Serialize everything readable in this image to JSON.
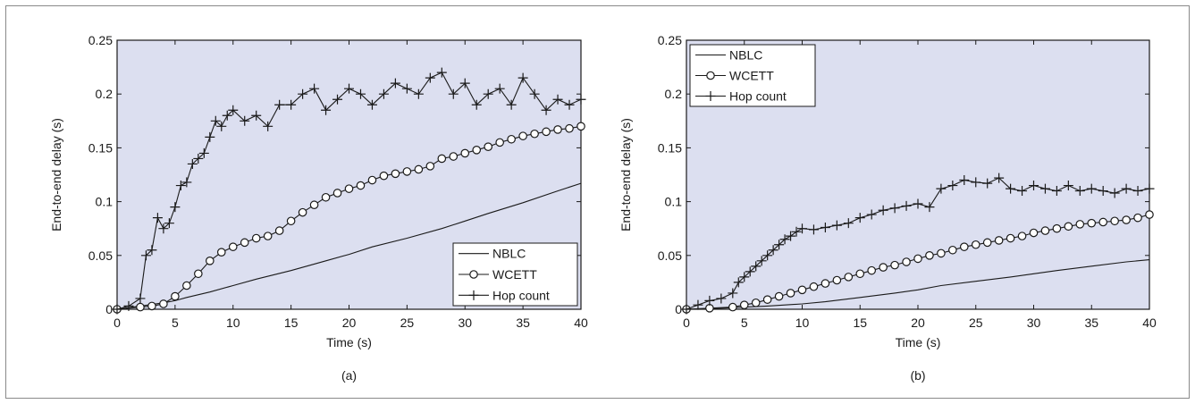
{
  "figure": {
    "panel_colors": {
      "plot_background": "#dcdff0",
      "axis": "#1a1a1a",
      "line": "#1a1a1a"
    }
  },
  "chart_data": [
    {
      "type": "line",
      "caption": "(a)",
      "xlabel": "Time (s)",
      "ylabel": "End-to-end delay (s)",
      "xlim": [
        0,
        40
      ],
      "ylim": [
        0,
        0.25
      ],
      "xticks": [
        0,
        5,
        10,
        15,
        20,
        25,
        30,
        35,
        40
      ],
      "xtick_labels": [
        "0",
        "5",
        "10",
        "15",
        "20",
        "25",
        "30",
        "35",
        "40"
      ],
      "yticks": [
        0,
        0.05,
        0.1,
        0.15,
        0.2,
        0.25
      ],
      "ytick_labels": [
        "0",
        "0.05",
        "0.1",
        "0.15",
        "0.2",
        "0.25"
      ],
      "grid": false,
      "legend_position": "bottom-right",
      "series": [
        {
          "name": "NBLC",
          "marker": "none",
          "x": [
            0,
            2,
            4,
            5,
            6,
            8,
            10,
            12,
            15,
            18,
            20,
            22,
            25,
            28,
            30,
            32,
            35,
            38,
            40
          ],
          "y": [
            0,
            0.003,
            0.006,
            0.008,
            0.011,
            0.016,
            0.022,
            0.028,
            0.036,
            0.045,
            0.051,
            0.058,
            0.066,
            0.075,
            0.082,
            0.089,
            0.099,
            0.11,
            0.117
          ]
        },
        {
          "name": "WCETT",
          "marker": "circle",
          "x": [
            0,
            2,
            3,
            4,
            5,
            6,
            7,
            8,
            9,
            10,
            11,
            12,
            13,
            14,
            15,
            16,
            17,
            18,
            19,
            20,
            21,
            22,
            23,
            24,
            25,
            26,
            27,
            28,
            29,
            30,
            31,
            32,
            33,
            34,
            35,
            36,
            37,
            38,
            39,
            40
          ],
          "y": [
            0,
            0.002,
            0.003,
            0.005,
            0.012,
            0.022,
            0.033,
            0.045,
            0.053,
            0.058,
            0.062,
            0.066,
            0.068,
            0.073,
            0.082,
            0.09,
            0.097,
            0.104,
            0.108,
            0.112,
            0.115,
            0.12,
            0.124,
            0.126,
            0.128,
            0.13,
            0.133,
            0.14,
            0.142,
            0.145,
            0.148,
            0.151,
            0.155,
            0.158,
            0.161,
            0.163,
            0.165,
            0.167,
            0.168,
            0.17
          ]
        },
        {
          "name": "Hop count",
          "marker": "plus",
          "x": [
            0,
            1,
            2,
            2.5,
            3,
            3.5,
            4,
            4.5,
            5,
            5.5,
            6,
            6.5,
            7,
            7.5,
            8,
            8.5,
            9,
            9.5,
            10,
            11,
            12,
            13,
            14,
            15,
            16,
            17,
            18,
            19,
            20,
            21,
            22,
            23,
            24,
            25,
            26,
            27,
            28,
            29,
            30,
            31,
            32,
            33,
            34,
            35,
            36,
            37,
            38,
            39,
            40
          ],
          "y": [
            0,
            0.003,
            0.01,
            0.05,
            0.055,
            0.085,
            0.075,
            0.08,
            0.095,
            0.115,
            0.118,
            0.135,
            0.14,
            0.145,
            0.16,
            0.175,
            0.17,
            0.18,
            0.185,
            0.175,
            0.18,
            0.17,
            0.19,
            0.19,
            0.2,
            0.205,
            0.185,
            0.195,
            0.205,
            0.2,
            0.19,
            0.2,
            0.21,
            0.205,
            0.2,
            0.215,
            0.22,
            0.2,
            0.21,
            0.19,
            0.2,
            0.205,
            0.19,
            0.215,
            0.2,
            0.185,
            0.195,
            0.19,
            0.195
          ]
        }
      ]
    },
    {
      "type": "line",
      "caption": "(b)",
      "xlabel": "Time (s)",
      "ylabel": "End-to-end delay (s)",
      "xlim": [
        0,
        40
      ],
      "ylim": [
        0,
        0.25
      ],
      "xticks": [
        0,
        5,
        10,
        15,
        20,
        25,
        30,
        35,
        40
      ],
      "xtick_labels": [
        "0",
        "5",
        "10",
        "15",
        "20",
        "25",
        "30",
        "35",
        "40"
      ],
      "yticks": [
        0,
        0.05,
        0.1,
        0.15,
        0.2,
        0.25
      ],
      "ytick_labels": [
        "0",
        "0.05",
        "0.1",
        "0.15",
        "0.2",
        "0.25"
      ],
      "grid": false,
      "legend_position": "top-left",
      "series": [
        {
          "name": "NBLC",
          "marker": "none",
          "x": [
            0,
            3,
            5,
            7,
            10,
            12,
            15,
            18,
            20,
            22,
            25,
            28,
            30,
            32,
            35,
            38,
            40
          ],
          "y": [
            0,
            0.001,
            0.002,
            0.003,
            0.005,
            0.007,
            0.011,
            0.015,
            0.018,
            0.022,
            0.026,
            0.03,
            0.033,
            0.036,
            0.04,
            0.044,
            0.046
          ]
        },
        {
          "name": "WCETT",
          "marker": "circle",
          "x": [
            0,
            2,
            4,
            5,
            6,
            7,
            8,
            9,
            10,
            11,
            12,
            13,
            14,
            15,
            16,
            17,
            18,
            19,
            20,
            21,
            22,
            23,
            24,
            25,
            26,
            27,
            28,
            29,
            30,
            31,
            32,
            33,
            34,
            35,
            36,
            37,
            38,
            39,
            40
          ],
          "y": [
            0,
            0.001,
            0.002,
            0.004,
            0.006,
            0.009,
            0.012,
            0.015,
            0.018,
            0.021,
            0.024,
            0.027,
            0.03,
            0.033,
            0.036,
            0.039,
            0.041,
            0.044,
            0.047,
            0.05,
            0.052,
            0.055,
            0.058,
            0.06,
            0.062,
            0.064,
            0.066,
            0.068,
            0.071,
            0.073,
            0.075,
            0.077,
            0.079,
            0.08,
            0.081,
            0.082,
            0.083,
            0.085,
            0.088
          ]
        },
        {
          "name": "Hop count",
          "marker": "plus",
          "x": [
            0,
            1,
            2,
            3,
            4,
            4.5,
            5,
            5.5,
            6,
            6.5,
            7,
            7.5,
            8,
            8.5,
            9,
            9.5,
            10,
            11,
            12,
            13,
            14,
            15,
            16,
            17,
            18,
            19,
            20,
            21,
            22,
            23,
            24,
            25,
            26,
            27,
            28,
            29,
            30,
            31,
            32,
            33,
            34,
            35,
            36,
            37,
            38,
            39,
            40
          ],
          "y": [
            0,
            0.004,
            0.008,
            0.01,
            0.015,
            0.025,
            0.03,
            0.035,
            0.04,
            0.045,
            0.05,
            0.055,
            0.06,
            0.065,
            0.068,
            0.072,
            0.075,
            0.074,
            0.076,
            0.078,
            0.08,
            0.085,
            0.088,
            0.092,
            0.094,
            0.096,
            0.098,
            0.095,
            0.112,
            0.115,
            0.12,
            0.118,
            0.117,
            0.122,
            0.112,
            0.11,
            0.115,
            0.112,
            0.11,
            0.115,
            0.11,
            0.112,
            0.11,
            0.108,
            0.112,
            0.11,
            0.112
          ]
        }
      ]
    }
  ]
}
